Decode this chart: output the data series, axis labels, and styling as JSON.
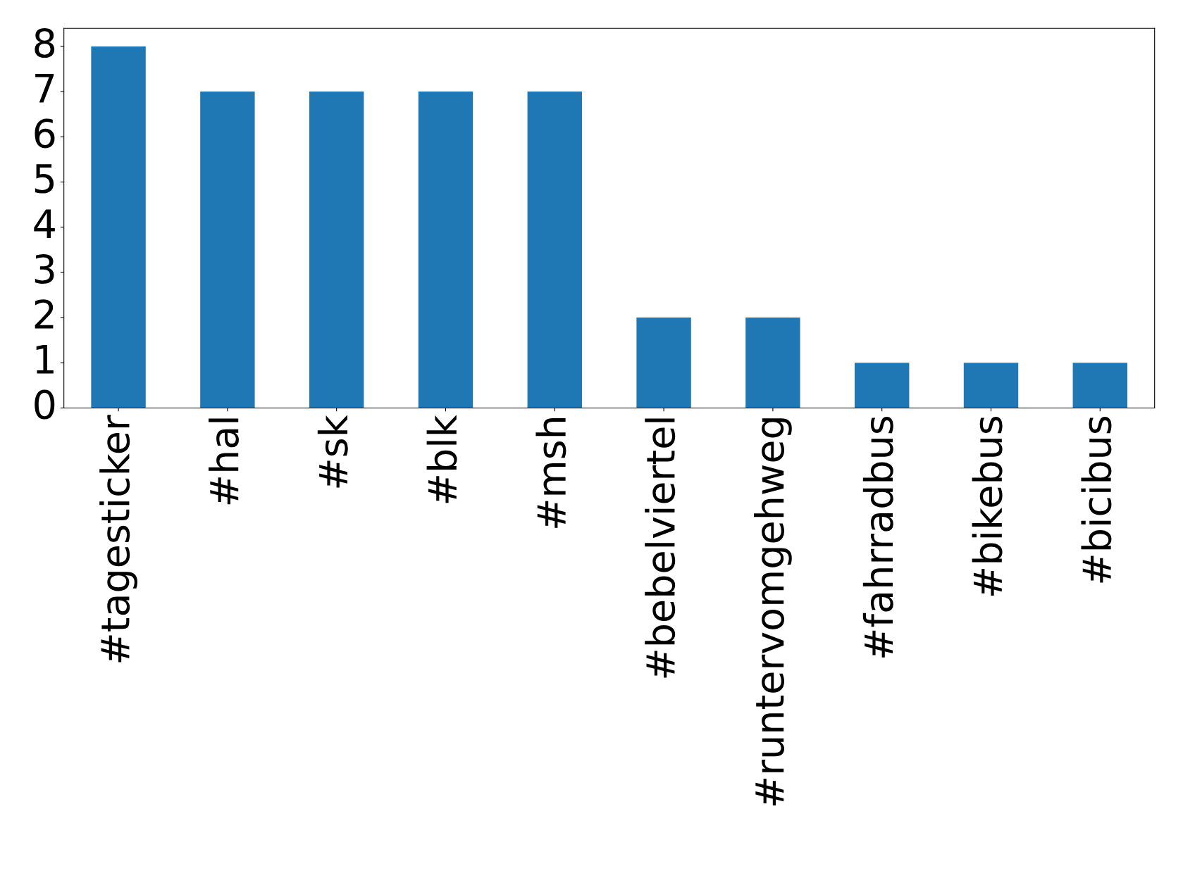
{
  "chart_data": {
    "type": "bar",
    "categories": [
      "#tagesticker",
      "#hal",
      "#sk",
      "#blk",
      "#msh",
      "#bebelviertel",
      "#runtervomgehweg",
      "#fahrradbus",
      "#bikebus",
      "#bicibus"
    ],
    "values": [
      8,
      7,
      7,
      7,
      7,
      2,
      2,
      1,
      1,
      1
    ],
    "color": "#1f77b4",
    "ylim": [
      0,
      8.4
    ],
    "yticks": [
      0,
      1,
      2,
      3,
      4,
      5,
      6,
      7,
      8
    ],
    "grid": false,
    "legend": false
  }
}
